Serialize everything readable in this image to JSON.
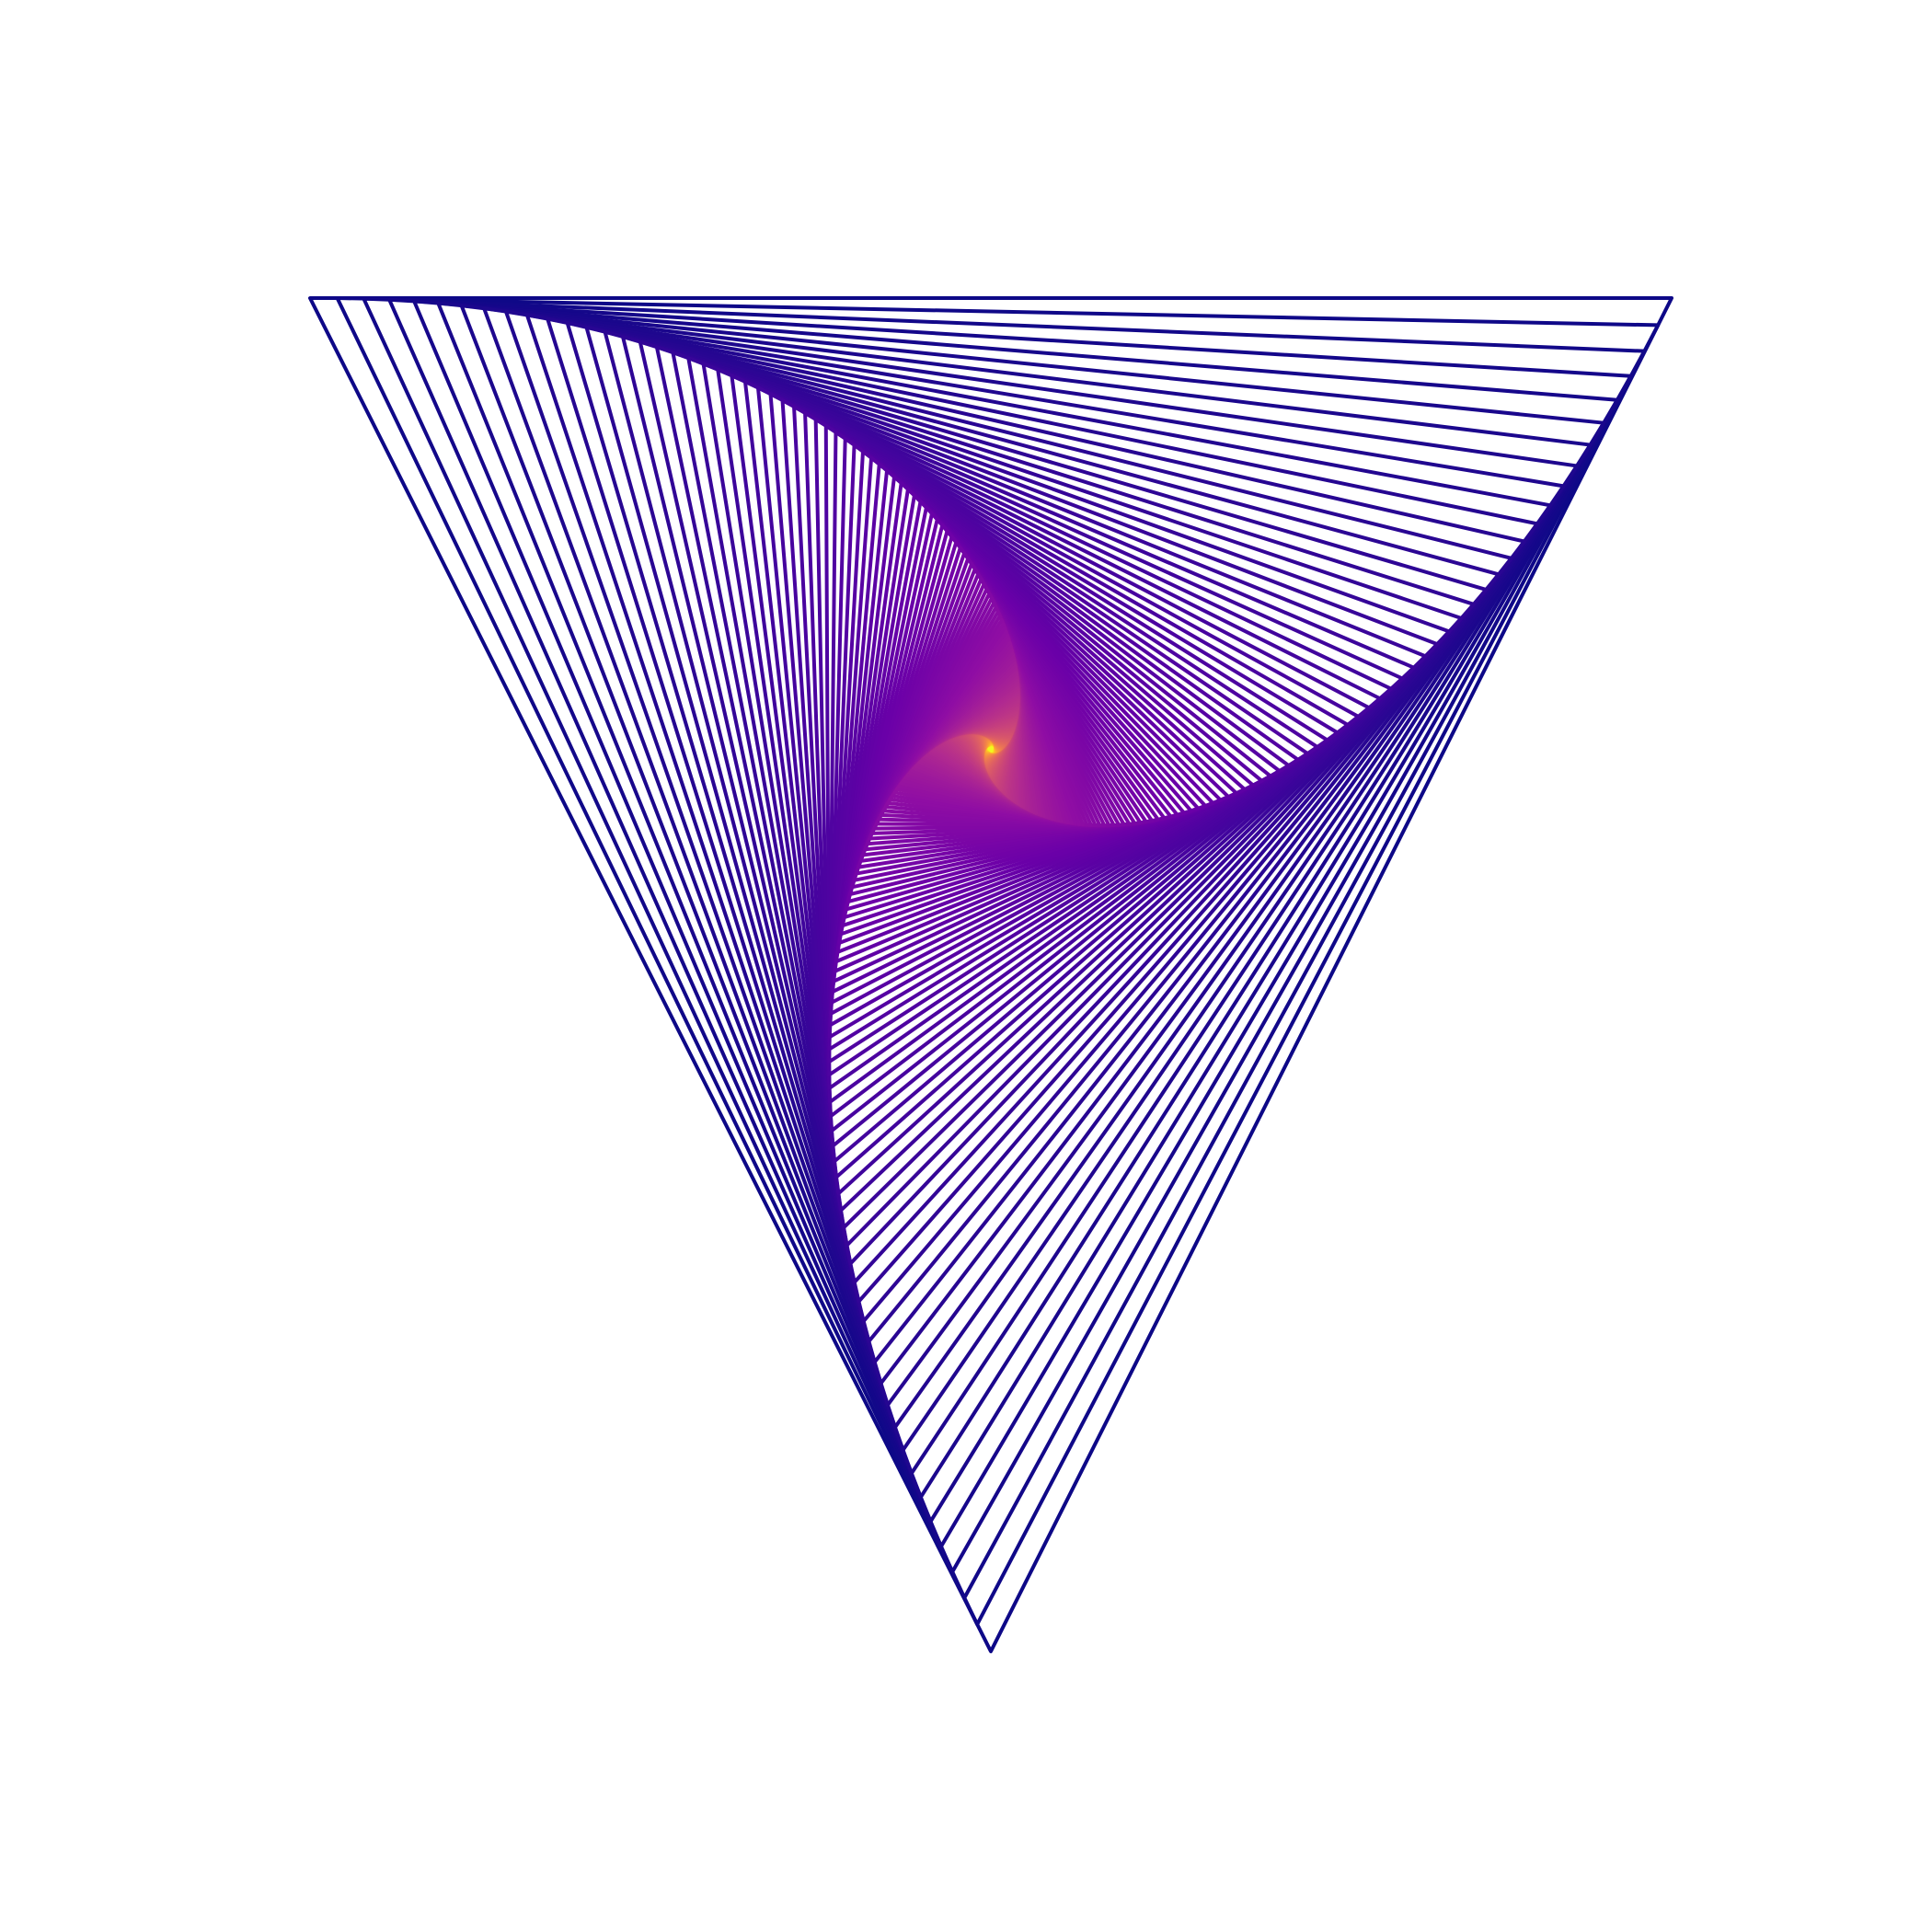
{
  "artwork": {
    "kind": "nested-rotating-triangles",
    "colormap": "plasma",
    "background_color": "#ffffff",
    "outer_color": "#0d0887",
    "center_color": "#f0f921",
    "shrink_fraction_per_step": 0.02,
    "levels": 220
  }
}
